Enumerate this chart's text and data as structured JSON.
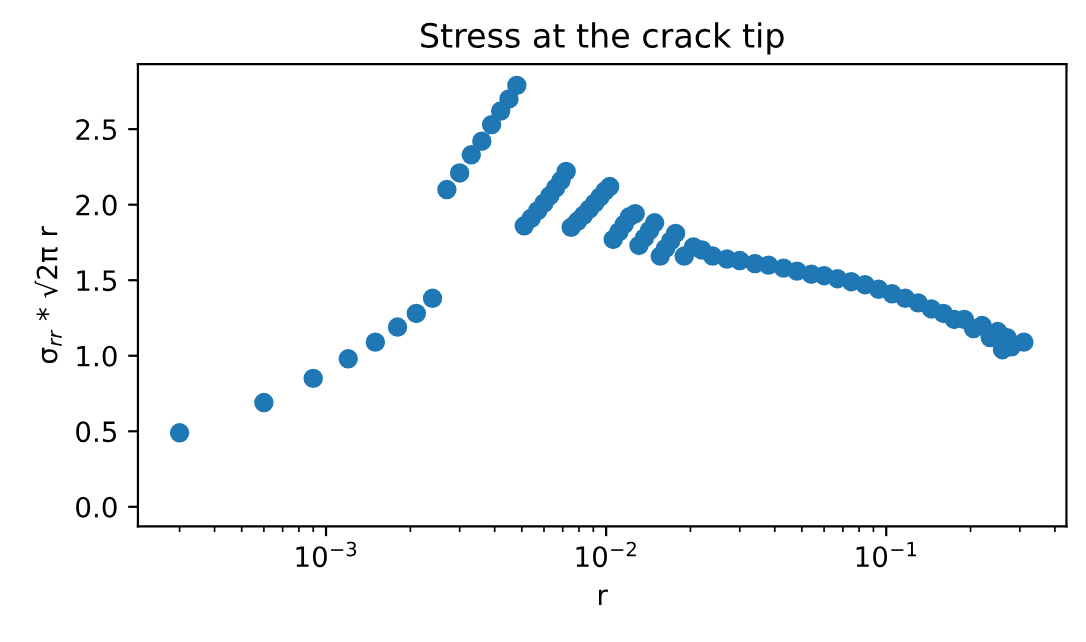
{
  "chart_data": {
    "type": "scatter",
    "title": "Stress at the crack tip",
    "xlabel": "r",
    "ylabel": "σ$_{rr}$ * √2π r",
    "log": "x",
    "marker": "circle",
    "grid": false,
    "xlim": [
      0.000213,
      0.44
    ],
    "ylim": [
      -0.13,
      2.93
    ],
    "xticks": [
      {
        "value": 0.001,
        "label": "10$^{−3}$"
      },
      {
        "value": 0.01,
        "label": "10$^{−2}$"
      },
      {
        "value": 0.1,
        "label": "10$^{−1}$"
      }
    ],
    "yticks": [
      {
        "value": 0.0,
        "label": "0.0"
      },
      {
        "value": 0.5,
        "label": "0.5"
      },
      {
        "value": 1.0,
        "label": "1.0"
      },
      {
        "value": 1.5,
        "label": "1.5"
      },
      {
        "value": 2.0,
        "label": "2.0"
      },
      {
        "value": 2.5,
        "label": "2.5"
      }
    ],
    "series": [
      {
        "color": "#1f77b4",
        "x": [
          0.0003,
          0.0006,
          0.0009,
          0.0012,
          0.0015,
          0.0018,
          0.0021,
          0.0024,
          0.0027,
          0.003,
          0.0033,
          0.0036,
          0.0039,
          0.0042,
          0.0045,
          0.0048,
          0.0051,
          0.0054,
          0.0057,
          0.006,
          0.0063,
          0.0066,
          0.0069,
          0.0072,
          0.0075,
          0.0079,
          0.0083,
          0.0087,
          0.0091,
          0.0095,
          0.0099,
          0.0103,
          0.0106,
          0.0111,
          0.0116,
          0.0121,
          0.0127,
          0.0131,
          0.0137,
          0.0143,
          0.0149,
          0.0156,
          0.0163,
          0.017,
          0.0177,
          0.019,
          0.0205,
          0.022,
          0.024,
          0.027,
          0.03,
          0.034,
          0.038,
          0.043,
          0.048,
          0.054,
          0.06,
          0.067,
          0.075,
          0.084,
          0.094,
          0.105,
          0.117,
          0.13,
          0.145,
          0.16,
          0.175,
          0.19,
          0.205,
          0.22,
          0.235,
          0.25,
          0.26,
          0.27,
          0.28,
          0.31
        ],
        "values": [
          0.49,
          0.69,
          0.85,
          0.98,
          1.09,
          1.19,
          1.28,
          1.38,
          2.1,
          2.21,
          2.33,
          2.42,
          2.53,
          2.62,
          2.7,
          2.79,
          1.86,
          1.91,
          1.96,
          2.01,
          2.06,
          2.11,
          2.16,
          2.22,
          1.85,
          1.89,
          1.93,
          1.97,
          2.01,
          2.05,
          2.09,
          2.12,
          1.77,
          1.82,
          1.87,
          1.92,
          1.94,
          1.73,
          1.78,
          1.83,
          1.88,
          1.66,
          1.71,
          1.76,
          1.81,
          1.66,
          1.72,
          1.7,
          1.66,
          1.64,
          1.63,
          1.61,
          1.6,
          1.58,
          1.56,
          1.54,
          1.53,
          1.51,
          1.49,
          1.47,
          1.44,
          1.41,
          1.38,
          1.35,
          1.31,
          1.28,
          1.24,
          1.24,
          1.18,
          1.2,
          1.12,
          1.16,
          1.04,
          1.12,
          1.06,
          1.09
        ]
      }
    ]
  }
}
